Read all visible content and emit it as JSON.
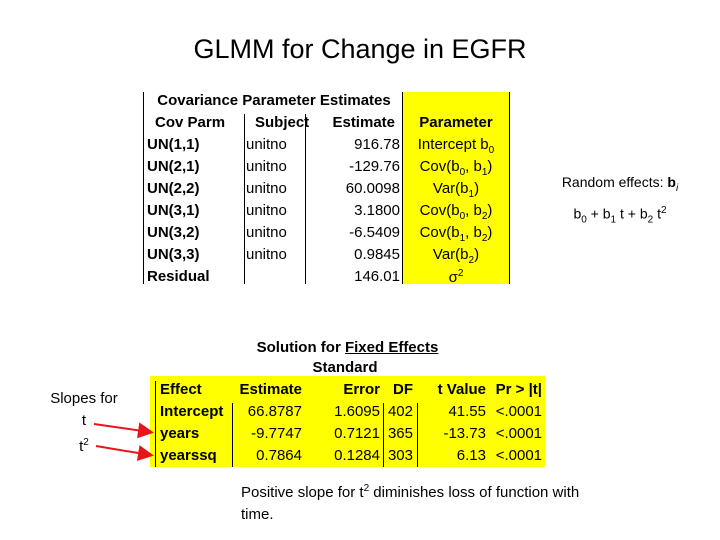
{
  "title": "GLMM for Change in EGFR",
  "covariance": {
    "header": "Covariance Parameter Estimates",
    "columns": [
      "Cov Parm",
      "Subject",
      "Estimate"
    ],
    "rows": [
      {
        "parm": "UN(1,1)",
        "subject": "unitno",
        "estimate": "916.78"
      },
      {
        "parm": "UN(2,1)",
        "subject": "unitno",
        "estimate": "-129.76"
      },
      {
        "parm": "UN(2,2)",
        "subject": "unitno",
        "estimate": "60.0098"
      },
      {
        "parm": "UN(3,1)",
        "subject": "unitno",
        "estimate": "3.1800"
      },
      {
        "parm": "UN(3,2)",
        "subject": "unitno",
        "estimate": "-6.5409"
      },
      {
        "parm": "UN(3,3)",
        "subject": "unitno",
        "estimate": "0.9845"
      },
      {
        "parm": "Residual",
        "subject": "",
        "estimate": "146.01"
      }
    ]
  },
  "parameter": {
    "header": "Parameter",
    "items": [
      "Intercept b0",
      "Cov(b0, b1)",
      "Var(b1)",
      "Cov(b0, b2)",
      "Cov(b1, b2)",
      "Var(b2)",
      "σ2"
    ]
  },
  "random_effects": {
    "line1": "Random effects: bi",
    "line2": "b0 + b1 t + b2 t2"
  },
  "fixed": {
    "title_prefix": "Solution for ",
    "title_underlined": "Fixed Effects",
    "standard": "Standard",
    "columns": [
      "Effect",
      "Estimate",
      "Error",
      "DF",
      "t Value",
      "Pr > |t|"
    ],
    "rows": [
      {
        "effect": "Intercept",
        "estimate": "66.8787",
        "error": "1.6095",
        "df": "402",
        "t": "41.55",
        "p": "<.0001"
      },
      {
        "effect": "years",
        "estimate": "-9.7747",
        "error": "0.7121",
        "df": "365",
        "t": "-13.73",
        "p": "<.0001"
      },
      {
        "effect": "yearssq",
        "estimate": "0.7864",
        "error": "0.1284",
        "df": "303",
        "t": "6.13",
        "p": "<.0001"
      }
    ]
  },
  "slopes": {
    "line1": "Slopes for",
    "line2": "t",
    "line3": "t2"
  },
  "note": {
    "part1": "Positive slope for t",
    "sup": "2",
    "part2": " diminishes loss of function with time."
  },
  "colors": {
    "highlight": "#ffff00",
    "arrow": "#e8141c"
  }
}
